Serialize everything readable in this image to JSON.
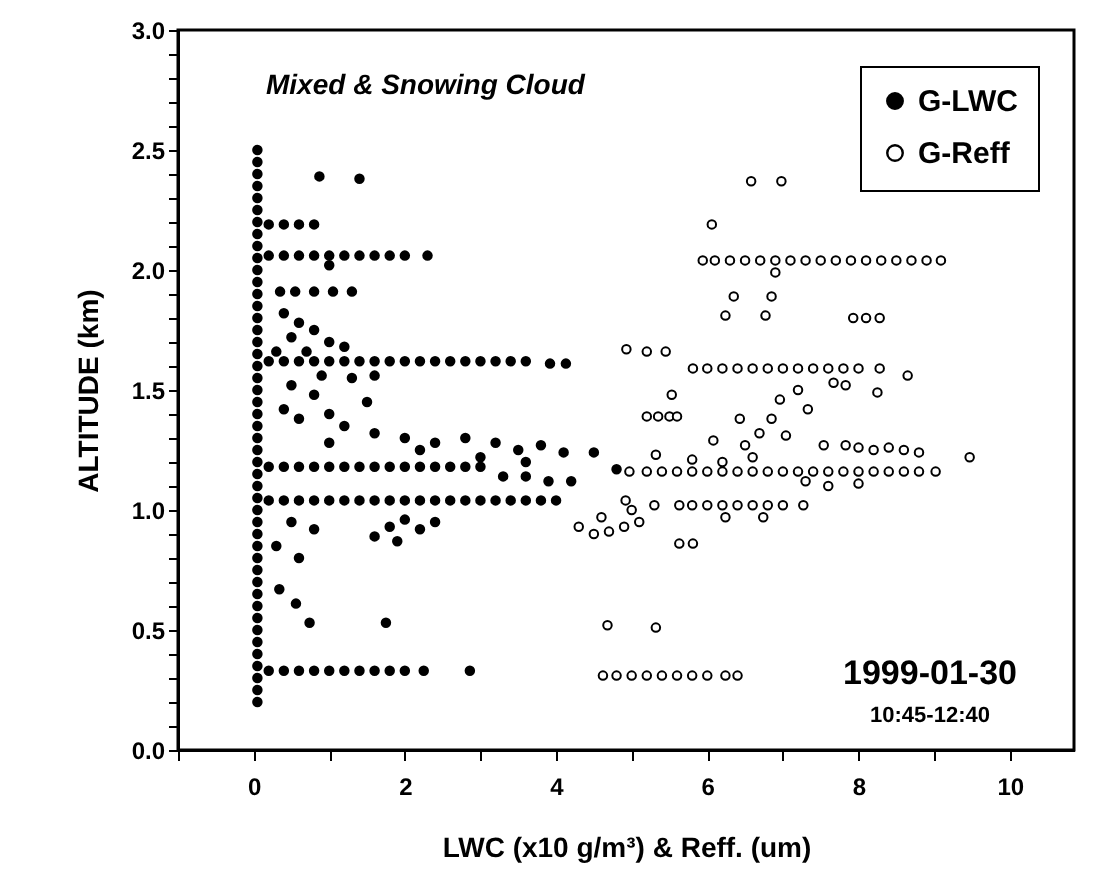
{
  "chart_data": {
    "type": "scatter",
    "xlabel": "LWC (x10 g/m³)  &  Reff. (um)",
    "ylabel": "ALTITUDE (km)",
    "annotations": [
      "Mixed & Snowing Cloud",
      "1999-01-30",
      "10:45-12:40"
    ],
    "xlim": [
      -1,
      10.85
    ],
    "ylim": [
      0,
      3
    ],
    "xticks": [
      {
        "value": -1,
        "label": null
      },
      0,
      {
        "value": 1,
        "label": null
      },
      2,
      {
        "value": 3,
        "label": null
      },
      4,
      {
        "value": 5,
        "label": null
      },
      6,
      {
        "value": 7,
        "label": null
      },
      8,
      {
        "value": 9,
        "label": null
      },
      10
    ],
    "yticks": [
      {
        "value": 0,
        "label": "0.0"
      },
      {
        "value": 0.1,
        "label": null
      },
      {
        "value": 0.2,
        "label": null
      },
      {
        "value": 0.3,
        "label": null
      },
      {
        "value": 0.4,
        "label": null
      },
      {
        "value": 0.5,
        "label": "0.5"
      },
      {
        "value": 0.6,
        "label": null
      },
      {
        "value": 0.7,
        "label": null
      },
      {
        "value": 0.8,
        "label": null
      },
      {
        "value": 0.9,
        "label": null
      },
      {
        "value": 1,
        "label": "1.0"
      },
      {
        "value": 1.1,
        "label": null
      },
      {
        "value": 1.2,
        "label": null
      },
      {
        "value": 1.3,
        "label": null
      },
      {
        "value": 1.4,
        "label": null
      },
      {
        "value": 1.5,
        "label": "1.5"
      },
      {
        "value": 1.6,
        "label": null
      },
      {
        "value": 1.7,
        "label": null
      },
      {
        "value": 1.8,
        "label": null
      },
      {
        "value": 1.9,
        "label": null
      },
      {
        "value": 2,
        "label": "2.0"
      },
      {
        "value": 2.1,
        "label": null
      },
      {
        "value": 2.2,
        "label": null
      },
      {
        "value": 2.3,
        "label": null
      },
      {
        "value": 2.4,
        "label": null
      },
      {
        "value": 2.5,
        "label": "2.5"
      },
      {
        "value": 2.6,
        "label": null
      },
      {
        "value": 2.7,
        "label": null
      },
      {
        "value": 2.8,
        "label": null
      },
      {
        "value": 2.9,
        "label": null
      },
      {
        "value": 3,
        "label": "3.0"
      }
    ],
    "grid": false,
    "legend": "top right",
    "marker": "circle",
    "series": [
      {
        "name": "G-LWC",
        "color": "#000000",
        "x": [
          0.05,
          0.05,
          0.05,
          0.05,
          0.05,
          0.05,
          0.05,
          0.05,
          0.05,
          0.05,
          0.05,
          0.05,
          0.05,
          0.05,
          0.05,
          0.05,
          0.05,
          0.05,
          0.05,
          0.05,
          0.05,
          0.05,
          0.05,
          0.05,
          0.05,
          0.05,
          0.05,
          0.05,
          0.05,
          0.05,
          0.05,
          0.05,
          0.05,
          0.05,
          0.05,
          0.05,
          0.05,
          0.05,
          0.05,
          0.05,
          0.05,
          0.05,
          0.05,
          0.05,
          0.05,
          0.05,
          0.05,
          0.2,
          0.4,
          0.6,
          0.8,
          1.0,
          1.2,
          1.4,
          1.6,
          1.8,
          2.0,
          2.3,
          0.2,
          0.4,
          0.6,
          0.8,
          0.35,
          0.55,
          0.8,
          1.05,
          1.3,
          0.87,
          1.4,
          1.0,
          0.2,
          0.4,
          0.6,
          0.8,
          1.0,
          1.2,
          1.4,
          1.6,
          1.8,
          2.0,
          2.2,
          2.4,
          2.6,
          2.8,
          3.0,
          3.2,
          3.4,
          3.6,
          3.92,
          4.13,
          0.4,
          0.6,
          0.5,
          0.8,
          1.0,
          0.3,
          0.7,
          1.2,
          0.9,
          0.5,
          1.3,
          0.8,
          1.6,
          0.4,
          1.0,
          1.5,
          0.6,
          1.2,
          1.6,
          2.0,
          2.4,
          2.8,
          3.2,
          3.5,
          3.8,
          4.1,
          1.0,
          2.2,
          3.0,
          4.5,
          3.6,
          0.2,
          0.4,
          0.6,
          0.8,
          1.0,
          1.2,
          1.4,
          1.6,
          1.8,
          2.0,
          2.2,
          2.4,
          2.6,
          2.8,
          3.0,
          3.3,
          3.6,
          3.9,
          4.2,
          4.8,
          0.2,
          0.4,
          0.6,
          0.8,
          1.0,
          1.2,
          1.4,
          1.6,
          1.8,
          2.0,
          2.2,
          2.4,
          2.6,
          2.8,
          3.0,
          3.2,
          3.4,
          3.6,
          3.8,
          4.0,
          1.6,
          1.8,
          2.0,
          2.2,
          2.4,
          1.9,
          0.5,
          0.8,
          0.3,
          0.6,
          0.34,
          0.56,
          0.74,
          1.75,
          0.2,
          0.4,
          0.6,
          0.8,
          1.0,
          1.2,
          1.4,
          1.6,
          1.8,
          2.0,
          2.25,
          2.86
        ],
        "values": [
          0.2,
          0.25,
          0.3,
          0.35,
          0.4,
          0.45,
          0.5,
          0.55,
          0.6,
          0.65,
          0.7,
          0.75,
          0.8,
          0.85,
          0.9,
          0.95,
          1.0,
          1.05,
          1.1,
          1.15,
          1.2,
          1.25,
          1.3,
          1.35,
          1.4,
          1.45,
          1.5,
          1.55,
          1.6,
          1.65,
          1.7,
          1.75,
          1.8,
          1.85,
          1.9,
          1.95,
          2.0,
          2.05,
          2.1,
          2.15,
          2.2,
          2.25,
          2.3,
          2.35,
          2.4,
          2.45,
          2.5,
          2.06,
          2.06,
          2.06,
          2.06,
          2.06,
          2.06,
          2.06,
          2.06,
          2.06,
          2.06,
          2.06,
          2.19,
          2.19,
          2.19,
          2.19,
          1.91,
          1.91,
          1.91,
          1.91,
          1.91,
          2.39,
          2.38,
          2.02,
          1.62,
          1.62,
          1.62,
          1.62,
          1.62,
          1.62,
          1.62,
          1.62,
          1.62,
          1.62,
          1.62,
          1.62,
          1.62,
          1.62,
          1.62,
          1.62,
          1.62,
          1.62,
          1.61,
          1.61,
          1.82,
          1.78,
          1.72,
          1.75,
          1.7,
          1.66,
          1.66,
          1.68,
          1.56,
          1.52,
          1.55,
          1.48,
          1.56,
          1.42,
          1.4,
          1.45,
          1.38,
          1.35,
          1.32,
          1.3,
          1.28,
          1.3,
          1.28,
          1.25,
          1.27,
          1.24,
          1.28,
          1.25,
          1.22,
          1.24,
          1.2,
          1.18,
          1.18,
          1.18,
          1.18,
          1.18,
          1.18,
          1.18,
          1.18,
          1.18,
          1.18,
          1.18,
          1.18,
          1.18,
          1.18,
          1.18,
          1.14,
          1.14,
          1.12,
          1.12,
          1.17,
          1.04,
          1.04,
          1.04,
          1.04,
          1.04,
          1.04,
          1.04,
          1.04,
          1.04,
          1.04,
          1.04,
          1.04,
          1.04,
          1.04,
          1.04,
          1.04,
          1.04,
          1.04,
          1.04,
          1.04,
          0.89,
          0.93,
          0.96,
          0.92,
          0.95,
          0.87,
          0.95,
          0.92,
          0.85,
          0.8,
          0.67,
          0.61,
          0.53,
          0.53,
          0.33,
          0.33,
          0.33,
          0.33,
          0.33,
          0.33,
          0.33,
          0.33,
          0.33,
          0.33,
          0.33,
          0.33
        ]
      },
      {
        "name": "G-Reff",
        "color": "#000000",
        "x": [
          5.94,
          6.1,
          6.3,
          6.5,
          6.7,
          6.9,
          7.1,
          7.3,
          7.5,
          7.7,
          7.9,
          8.1,
          8.3,
          8.5,
          8.7,
          8.9,
          9.09,
          6.9,
          6.58,
          6.98,
          6.06,
          6.35,
          6.85,
          6.24,
          6.77,
          4.93,
          5.2,
          5.45,
          7.93,
          8.1,
          8.28,
          8.65,
          5.81,
          6.0,
          6.2,
          6.4,
          6.6,
          6.8,
          7.0,
          7.2,
          7.4,
          7.6,
          7.8,
          8.0,
          8.28,
          5.53,
          7.2,
          7.67,
          7.83,
          8.25,
          6.96,
          7.33,
          5.2,
          5.35,
          5.5,
          5.6,
          6.85,
          6.43,
          6.69,
          6.08,
          7.04,
          6.5,
          6.6,
          5.32,
          7.54,
          7.83,
          8.0,
          8.2,
          8.4,
          8.6,
          8.8,
          9.47,
          5.8,
          6.2,
          4.97,
          5.2,
          5.4,
          5.6,
          5.8,
          6.0,
          6.2,
          6.4,
          6.6,
          6.8,
          7.0,
          7.2,
          7.4,
          7.6,
          7.8,
          8.0,
          8.2,
          8.4,
          8.6,
          8.8,
          9.02,
          7.3,
          7.6,
          8.0,
          5.63,
          5.8,
          6.0,
          6.2,
          6.4,
          6.6,
          6.8,
          7.0,
          7.27,
          4.3,
          4.5,
          4.7,
          4.9,
          5.1,
          4.6,
          4.92,
          5.0,
          5.3,
          5.63,
          5.81,
          6.24,
          6.74,
          4.68,
          5.32,
          4.62,
          4.8,
          5.0,
          5.2,
          5.4,
          5.6,
          5.8,
          6.0,
          6.24,
          6.4
        ],
        "values": [
          2.04,
          2.04,
          2.04,
          2.04,
          2.04,
          2.04,
          2.04,
          2.04,
          2.04,
          2.04,
          2.04,
          2.04,
          2.04,
          2.04,
          2.04,
          2.04,
          2.04,
          1.99,
          2.37,
          2.37,
          2.19,
          1.89,
          1.89,
          1.81,
          1.81,
          1.67,
          1.66,
          1.66,
          1.8,
          1.8,
          1.8,
          1.56,
          1.59,
          1.59,
          1.59,
          1.59,
          1.59,
          1.59,
          1.59,
          1.59,
          1.59,
          1.59,
          1.59,
          1.59,
          1.59,
          1.48,
          1.5,
          1.53,
          1.52,
          1.49,
          1.46,
          1.42,
          1.39,
          1.39,
          1.39,
          1.39,
          1.38,
          1.38,
          1.32,
          1.29,
          1.31,
          1.27,
          1.22,
          1.23,
          1.27,
          1.27,
          1.26,
          1.25,
          1.26,
          1.25,
          1.24,
          1.22,
          1.21,
          1.2,
          1.16,
          1.16,
          1.16,
          1.16,
          1.16,
          1.16,
          1.16,
          1.16,
          1.16,
          1.16,
          1.16,
          1.16,
          1.16,
          1.16,
          1.16,
          1.16,
          1.16,
          1.16,
          1.16,
          1.16,
          1.16,
          1.12,
          1.1,
          1.11,
          1.02,
          1.02,
          1.02,
          1.02,
          1.02,
          1.02,
          1.02,
          1.02,
          1.02,
          0.93,
          0.9,
          0.91,
          0.93,
          0.95,
          0.97,
          1.04,
          1.0,
          1.02,
          0.86,
          0.86,
          0.97,
          0.97,
          0.52,
          0.51,
          0.31,
          0.31,
          0.31,
          0.31,
          0.31,
          0.31,
          0.31,
          0.31,
          0.31,
          0.31
        ]
      }
    ]
  }
}
